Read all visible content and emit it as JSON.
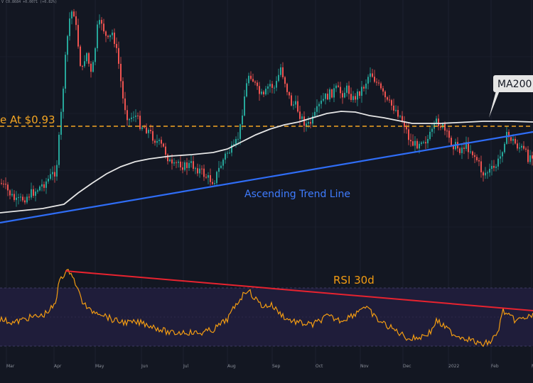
{
  "header": {
    "ticker_text": "V  C0.8684  +0.0071 (+0.82%)"
  },
  "colors": {
    "background": "#131722",
    "candle_up": "#26a69a",
    "candle_down": "#ef5350",
    "ma_line": "#e6e6e6",
    "support_line": "#f5a623",
    "trend_line": "#2f6df6",
    "rsi_line": "#f39c12",
    "rsi_band": "#1f1d3a",
    "rsi_trend": "#e8232f",
    "axis_text": "#8a8f99",
    "label_box": "#e6e6e6"
  },
  "annotations": {
    "support_label": "e At $0.93",
    "ma_label": "MA200",
    "trend_label": "Ascending Trend Line",
    "rsi_label": "RSI 30d"
  },
  "chart_data": [
    {
      "type": "candlestick",
      "title": "",
      "x_categories": [
        "Mar",
        "Apr",
        "May",
        "Jun",
        "Jul",
        "Aug",
        "Sep",
        "Oct",
        "Nov",
        "Dec",
        "2022",
        "Feb",
        "M"
      ],
      "support_level": 0.93,
      "series": [
        {
          "name": "MA200"
        },
        {
          "name": "Ascending Trend Line"
        }
      ]
    },
    {
      "type": "line",
      "title": "RSI 30d",
      "x_categories": [
        "Mar",
        "Apr",
        "May",
        "Jun",
        "Jul",
        "Aug",
        "Sep",
        "Oct",
        "Nov",
        "Dec",
        "2022",
        "Feb",
        "M"
      ],
      "ylim": [
        0,
        100
      ],
      "bands": [
        30,
        70
      ],
      "series": [
        {
          "name": "RSI 30d"
        }
      ]
    }
  ]
}
